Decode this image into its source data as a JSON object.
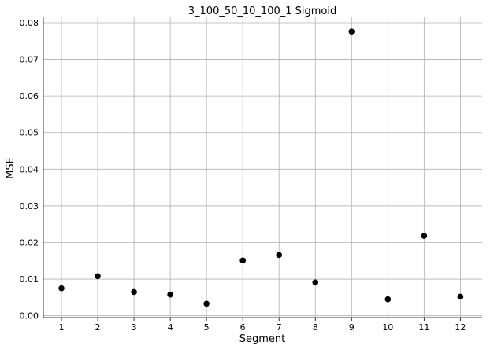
{
  "chart_data": {
    "type": "scatter",
    "title": "3_100_50_10_100_1 Sigmoid",
    "xlabel": "Segment",
    "ylabel": "MSE",
    "x": [
      1,
      2,
      3,
      4,
      5,
      6,
      7,
      8,
      9,
      10,
      11,
      12
    ],
    "y": [
      0.0075,
      0.0108,
      0.0065,
      0.0058,
      0.0033,
      0.0151,
      0.0166,
      0.0091,
      0.0776,
      0.0045,
      0.0218,
      0.0052
    ],
    "x_ticks": [
      "1",
      "2",
      "3",
      "4",
      "5",
      "6",
      "7",
      "8",
      "9",
      "10",
      "11",
      "12"
    ],
    "y_ticks": [
      "0.00",
      "0.01",
      "0.02",
      "0.03",
      "0.04",
      "0.05",
      "0.06",
      "0.07",
      "0.08"
    ],
    "y_tick_values": [
      0,
      0.01,
      0.02,
      0.03,
      0.04,
      0.05,
      0.06,
      0.07,
      0.08
    ],
    "xlim": [
      0.5,
      12.6
    ],
    "ylim": [
      -0.0005,
      0.0815
    ],
    "grid": true,
    "point_color": "#000000",
    "grid_color": "#b0b0b0"
  }
}
